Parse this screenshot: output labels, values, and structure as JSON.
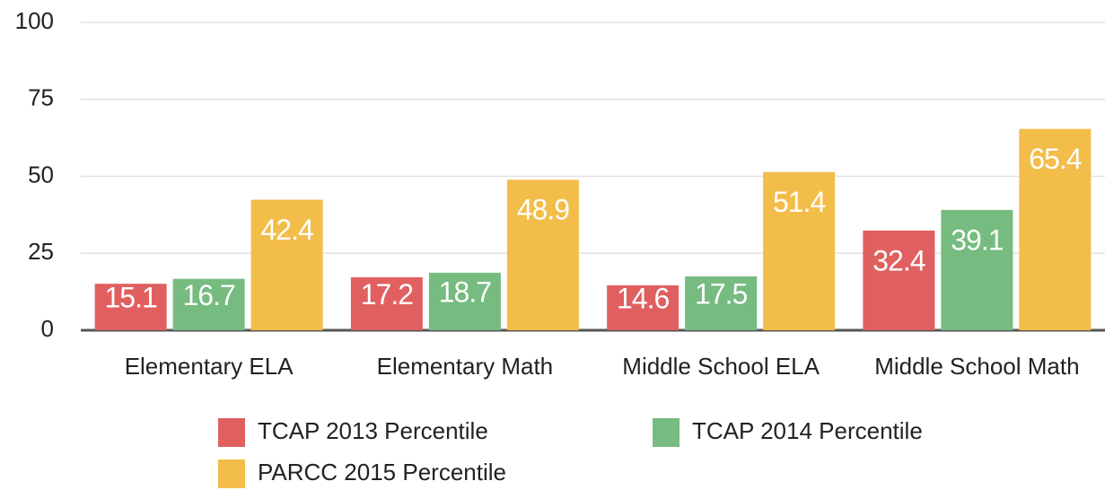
{
  "chart_data": {
    "type": "bar",
    "categories": [
      "Elementary ELA",
      "Elementary Math",
      "Middle School ELA",
      "Middle School Math"
    ],
    "series": [
      {
        "name": "TCAP 2013 Percentile",
        "color": "#e06060",
        "values": [
          15.1,
          17.2,
          14.6,
          32.4
        ]
      },
      {
        "name": "TCAP 2014 Percentile",
        "color": "#76bb7f",
        "values": [
          16.7,
          18.7,
          17.5,
          39.1
        ]
      },
      {
        "name": "PARCC 2015 Percentile",
        "color": "#f3bd4a",
        "values": [
          42.4,
          48.9,
          51.4,
          65.4
        ]
      }
    ],
    "ylim": [
      0,
      100
    ],
    "yticks": [
      0,
      25,
      50,
      75,
      100
    ],
    "grid": true,
    "legend": "bottom"
  }
}
